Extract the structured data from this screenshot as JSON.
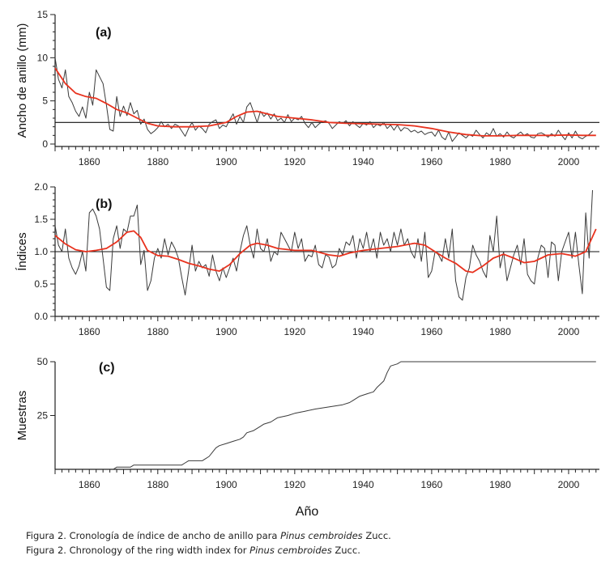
{
  "colors": {
    "raw": "#3a3a3a",
    "smooth": "#e8321e",
    "axis": "#222222",
    "reference": "#111111"
  },
  "chart_data": [
    {
      "type": "line",
      "panel": "(a)",
      "ylabel": "Ancho de anillo (mm)",
      "xlim": [
        1850,
        2009
      ],
      "ylim": [
        0,
        15
      ],
      "yticks": [
        0,
        5,
        10,
        15
      ],
      "xticks": [
        1860,
        1880,
        1900,
        1920,
        1940,
        1960,
        1980,
        2000
      ],
      "reference_line": 2.5,
      "x_start": 1850,
      "series": [
        {
          "name": "ancho de anillo",
          "color": "#3a3a3a",
          "values": [
            10.0,
            7.5,
            6.5,
            8.6,
            5.5,
            4.8,
            3.8,
            3.2,
            4.3,
            3.0,
            6.0,
            4.5,
            8.6,
            7.8,
            7.0,
            4.5,
            1.7,
            1.5,
            5.5,
            3.2,
            4.4,
            3.3,
            4.8,
            3.5,
            3.9,
            2.3,
            2.9,
            1.7,
            1.2,
            1.5,
            1.9,
            2.6,
            2.0,
            2.3,
            1.8,
            2.3,
            2.1,
            1.5,
            0.9,
            1.8,
            2.5,
            1.6,
            2.1,
            1.8,
            1.3,
            2.3,
            2.6,
            2.8,
            1.8,
            2.2,
            2.0,
            2.8,
            3.5,
            2.3,
            3.2,
            2.5,
            4.3,
            4.8,
            3.7,
            2.5,
            3.8,
            3.2,
            3.6,
            2.9,
            3.5,
            2.7,
            3.0,
            2.5,
            3.4,
            2.6,
            3.0,
            2.8,
            3.2,
            2.4,
            1.9,
            2.5,
            1.9,
            2.3,
            2.6,
            2.7,
            2.4,
            1.8,
            2.2,
            2.6,
            2.4,
            2.7,
            2.1,
            2.6,
            2.2,
            1.9,
            2.4,
            2.2,
            2.6,
            1.9,
            2.3,
            2.1,
            2.5,
            1.8,
            2.2,
            1.6,
            2.2,
            1.5,
            1.9,
            1.8,
            1.4,
            1.6,
            1.3,
            1.5,
            1.1,
            1.3,
            1.4,
            0.9,
            1.6,
            0.8,
            0.5,
            1.4,
            0.3,
            0.8,
            1.3,
            1.0,
            0.7,
            1.1,
            0.9,
            1.6,
            1.1,
            0.7,
            1.3,
            1.0,
            1.8,
            0.9,
            1.2,
            0.8,
            1.4,
            0.9,
            0.7,
            1.1,
            1.4,
            1.0,
            1.2,
            0.8,
            0.7,
            1.2,
            1.3,
            1.1,
            0.8,
            1.2,
            0.9,
            1.6,
            1.0,
            0.5,
            1.3,
            0.7,
            1.5,
            0.8,
            0.6,
            0.9,
            1.1,
            1.5
          ]
        },
        {
          "name": "suavizado",
          "color": "#e8321e",
          "points": [
            [
              1850,
              8.8
            ],
            [
              1853,
              7.0
            ],
            [
              1856,
              5.9
            ],
            [
              1859,
              5.5
            ],
            [
              1862,
              5.3
            ],
            [
              1865,
              4.7
            ],
            [
              1868,
              4.0
            ],
            [
              1871,
              3.6
            ],
            [
              1874,
              3.0
            ],
            [
              1877,
              2.4
            ],
            [
              1880,
              2.1
            ],
            [
              1885,
              2.0
            ],
            [
              1890,
              2.0
            ],
            [
              1895,
              2.1
            ],
            [
              1900,
              2.5
            ],
            [
              1903,
              3.2
            ],
            [
              1906,
              3.7
            ],
            [
              1909,
              3.8
            ],
            [
              1912,
              3.5
            ],
            [
              1915,
              3.2
            ],
            [
              1920,
              3.0
            ],
            [
              1925,
              2.8
            ],
            [
              1930,
              2.5
            ],
            [
              1935,
              2.4
            ],
            [
              1940,
              2.35
            ],
            [
              1945,
              2.3
            ],
            [
              1950,
              2.25
            ],
            [
              1955,
              2.1
            ],
            [
              1960,
              1.8
            ],
            [
              1965,
              1.4
            ],
            [
              1970,
              1.1
            ],
            [
              1975,
              0.95
            ],
            [
              1980,
              0.95
            ],
            [
              1985,
              1.0
            ],
            [
              1990,
              1.0
            ],
            [
              1995,
              1.0
            ],
            [
              2000,
              1.05
            ],
            [
              2004,
              1.0
            ],
            [
              2008,
              1.0
            ]
          ]
        }
      ]
    },
    {
      "type": "line",
      "panel": "(b)",
      "ylabel": "Índices",
      "xlim": [
        1850,
        2009
      ],
      "ylim": [
        0.0,
        2.0
      ],
      "yticks": [
        "0.0",
        "0.5",
        "1.0",
        "1.5",
        "2.0"
      ],
      "xticks": [
        1860,
        1880,
        1900,
        1920,
        1940,
        1960,
        1980,
        2000
      ],
      "reference_line": 1.0,
      "x_start": 1850,
      "series": [
        {
          "name": "índice",
          "color": "#3a3a3a",
          "values": [
            1.4,
            1.1,
            1.0,
            1.35,
            0.9,
            0.75,
            0.65,
            0.78,
            1.0,
            0.7,
            1.6,
            1.66,
            1.55,
            1.35,
            0.9,
            0.45,
            0.4,
            1.2,
            1.4,
            1.05,
            1.35,
            1.3,
            1.55,
            1.55,
            1.72,
            0.8,
            1.02,
            0.4,
            0.55,
            0.9,
            1.05,
            0.9,
            1.2,
            0.95,
            1.15,
            1.05,
            0.9,
            0.6,
            0.33,
            0.7,
            1.1,
            0.7,
            0.85,
            0.75,
            0.8,
            0.62,
            0.95,
            0.7,
            0.55,
            0.75,
            0.6,
            0.75,
            0.9,
            0.7,
            1.0,
            1.25,
            1.4,
            1.1,
            0.9,
            1.35,
            1.05,
            1.0,
            1.2,
            0.85,
            1.0,
            0.95,
            1.3,
            1.2,
            1.1,
            1.0,
            1.3,
            1.05,
            1.2,
            0.85,
            0.95,
            0.92,
            1.1,
            0.8,
            0.75,
            0.95,
            0.92,
            0.75,
            0.8,
            1.05,
            0.95,
            1.15,
            1.1,
            1.25,
            0.9,
            1.2,
            1.05,
            1.3,
            1.0,
            1.2,
            0.9,
            1.3,
            1.1,
            1.2,
            1.0,
            1.3,
            1.1,
            1.35,
            1.1,
            1.2,
            1.0,
            0.9,
            1.2,
            0.85,
            1.3,
            0.6,
            0.7,
            1.0,
            0.95,
            0.85,
            1.2,
            0.9,
            1.35,
            0.55,
            0.3,
            0.25,
            0.6,
            0.75,
            1.1,
            0.95,
            0.85,
            0.7,
            0.6,
            1.25,
            1.0,
            1.55,
            0.75,
            1.0,
            0.55,
            0.75,
            0.95,
            1.1,
            0.8,
            1.2,
            0.65,
            0.55,
            0.5,
            0.9,
            1.1,
            1.05,
            0.6,
            1.15,
            1.1,
            0.55,
            1.0,
            1.15,
            1.3,
            0.9,
            1.3,
            0.8,
            0.35,
            1.6,
            0.9,
            1.95
          ]
        },
        {
          "name": "suavizado",
          "color": "#e8321e",
          "points": [
            [
              1850,
              1.25
            ],
            [
              1853,
              1.12
            ],
            [
              1856,
              1.03
            ],
            [
              1859,
              1.0
            ],
            [
              1862,
              1.02
            ],
            [
              1865,
              1.05
            ],
            [
              1868,
              1.15
            ],
            [
              1871,
              1.3
            ],
            [
              1873,
              1.32
            ],
            [
              1875,
              1.22
            ],
            [
              1877,
              1.02
            ],
            [
              1880,
              0.94
            ],
            [
              1883,
              0.93
            ],
            [
              1886,
              0.88
            ],
            [
              1889,
              0.82
            ],
            [
              1892,
              0.78
            ],
            [
              1895,
              0.73
            ],
            [
              1898,
              0.7
            ],
            [
              1901,
              0.8
            ],
            [
              1904,
              0.97
            ],
            [
              1907,
              1.1
            ],
            [
              1909,
              1.13
            ],
            [
              1912,
              1.1
            ],
            [
              1915,
              1.05
            ],
            [
              1920,
              1.02
            ],
            [
              1925,
              1.02
            ],
            [
              1930,
              0.95
            ],
            [
              1933,
              0.93
            ],
            [
              1936,
              0.98
            ],
            [
              1940,
              1.02
            ],
            [
              1945,
              1.05
            ],
            [
              1950,
              1.08
            ],
            [
              1955,
              1.13
            ],
            [
              1958,
              1.1
            ],
            [
              1961,
              1.0
            ],
            [
              1964,
              0.9
            ],
            [
              1967,
              0.82
            ],
            [
              1970,
              0.7
            ],
            [
              1972,
              0.68
            ],
            [
              1975,
              0.78
            ],
            [
              1978,
              0.9
            ],
            [
              1981,
              0.96
            ],
            [
              1984,
              0.9
            ],
            [
              1987,
              0.83
            ],
            [
              1990,
              0.85
            ],
            [
              1994,
              0.95
            ],
            [
              1998,
              0.97
            ],
            [
              2002,
              0.93
            ],
            [
              2005,
              1.0
            ],
            [
              2008,
              1.35
            ]
          ]
        }
      ]
    },
    {
      "type": "line",
      "panel": "(c)",
      "ylabel": "Muestras",
      "xlabel": "Año",
      "xlim": [
        1850,
        2009
      ],
      "ylim": [
        0,
        55
      ],
      "yticks": [
        25,
        50
      ],
      "xticks": [
        1860,
        1880,
        1900,
        1920,
        1940,
        1960,
        1980,
        2000
      ],
      "series": [
        {
          "name": "muestras",
          "color": "#3a3a3a",
          "points": [
            [
              1867,
              0
            ],
            [
              1868,
              1
            ],
            [
              1872,
              1
            ],
            [
              1873,
              2
            ],
            [
              1887,
              2
            ],
            [
              1888,
              3
            ],
            [
              1889,
              4
            ],
            [
              1893,
              4
            ],
            [
              1894,
              5
            ],
            [
              1895,
              6
            ],
            [
              1896,
              8
            ],
            [
              1897,
              10
            ],
            [
              1898,
              11
            ],
            [
              1900,
              12
            ],
            [
              1902,
              13
            ],
            [
              1904,
              14
            ],
            [
              1905,
              15
            ],
            [
              1906,
              17
            ],
            [
              1908,
              18
            ],
            [
              1910,
              20
            ],
            [
              1911,
              21
            ],
            [
              1913,
              22
            ],
            [
              1915,
              24
            ],
            [
              1918,
              25
            ],
            [
              1920,
              26
            ],
            [
              1923,
              27
            ],
            [
              1926,
              28
            ],
            [
              1930,
              29
            ],
            [
              1934,
              30
            ],
            [
              1936,
              31
            ],
            [
              1937,
              32
            ],
            [
              1939,
              34
            ],
            [
              1941,
              35
            ],
            [
              1943,
              36
            ],
            [
              1944,
              38
            ],
            [
              1946,
              41
            ],
            [
              1947,
              45
            ],
            [
              1948,
              48
            ],
            [
              1950,
              49
            ],
            [
              1951,
              50
            ],
            [
              2008,
              50
            ]
          ]
        }
      ]
    }
  ],
  "caption": {
    "line1_prefix": "Figura 2. Cronología de índice de ancho de anillo para ",
    "line1_species": "Pinus cembroides",
    "line1_suffix": " Zucc.",
    "line2_prefix": "Figura 2. Chronology of the ring width index for ",
    "line2_species": "Pinus cembroides",
    "line2_suffix": " Zucc."
  }
}
